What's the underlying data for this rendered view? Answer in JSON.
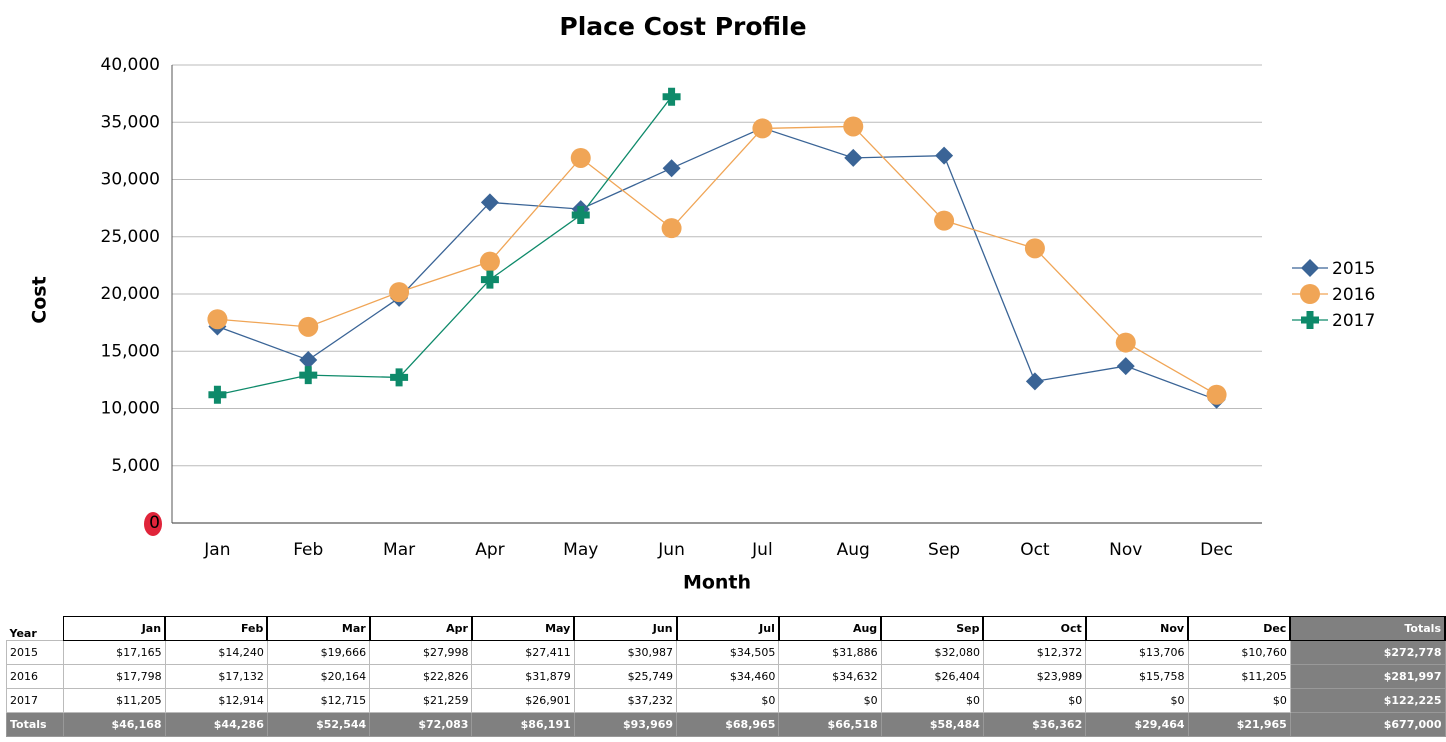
{
  "chart_data": {
    "type": "line",
    "title": "Place Cost Profile",
    "xlabel": "Month",
    "ylabel": "Cost",
    "categories": [
      "Jan",
      "Feb",
      "Mar",
      "Apr",
      "May",
      "Jun",
      "Jul",
      "Aug",
      "Sep",
      "Oct",
      "Nov",
      "Dec"
    ],
    "series": [
      {
        "name": "2015",
        "color": "#3a6496",
        "marker": "diamond",
        "values": [
          17165,
          14240,
          19666,
          27998,
          27411,
          30987,
          34505,
          31886,
          32080,
          12372,
          13706,
          10760
        ]
      },
      {
        "name": "2016",
        "color": "#f0a556",
        "marker": "circle",
        "values": [
          17798,
          17132,
          20164,
          22826,
          31879,
          25749,
          34460,
          34632,
          26404,
          23989,
          15758,
          11205
        ]
      },
      {
        "name": "2017",
        "color": "#0e8a6a",
        "marker": "plus",
        "values": [
          11205,
          12914,
          12715,
          21259,
          26901,
          37232,
          null,
          null,
          null,
          null,
          null,
          null
        ]
      }
    ],
    "ylim": [
      0,
      40000
    ],
    "yticks": [
      0,
      {
        "value": 5000,
        "label": "5,000"
      },
      {
        "value": 10000,
        "label": "10,000"
      },
      {
        "value": 15000,
        "label": "15,000"
      },
      {
        "value": 20000,
        "label": "20,000"
      },
      {
        "value": 25000,
        "label": "25,000"
      },
      {
        "value": 30000,
        "label": "30,000"
      },
      {
        "value": 35000,
        "label": "35,000"
      },
      {
        "value": 40000,
        "label": "40,000"
      }
    ],
    "grid": true,
    "legend": "right"
  },
  "table": {
    "header": [
      "Year",
      "Jan",
      "Feb",
      "Mar",
      "Apr",
      "May",
      "Jun",
      "Jul",
      "Aug",
      "Sep",
      "Oct",
      "Nov",
      "Dec",
      "Totals"
    ],
    "rows": [
      [
        "2015",
        "$17,165",
        "$14,240",
        "$19,666",
        "$27,998",
        "$27,411",
        "$30,987",
        "$34,505",
        "$31,886",
        "$32,080",
        "$12,372",
        "$13,706",
        "$10,760",
        "$272,778"
      ],
      [
        "2016",
        "$17,798",
        "$17,132",
        "$20,164",
        "$22,826",
        "$31,879",
        "$25,749",
        "$34,460",
        "$34,632",
        "$26,404",
        "$23,989",
        "$15,758",
        "$11,205",
        "$281,997"
      ],
      [
        "2017",
        "$11,205",
        "$12,914",
        "$12,715",
        "$21,259",
        "$26,901",
        "$37,232",
        "$0",
        "$0",
        "$0",
        "$0",
        "$0",
        "$0",
        "$122,225"
      ],
      [
        "Totals",
        "$46,168",
        "$44,286",
        "$52,544",
        "$72,083",
        "$86,191",
        "$93,969",
        "$68,965",
        "$66,518",
        "$58,484",
        "$36,362",
        "$29,464",
        "$21,965",
        "$677,000"
      ]
    ]
  }
}
